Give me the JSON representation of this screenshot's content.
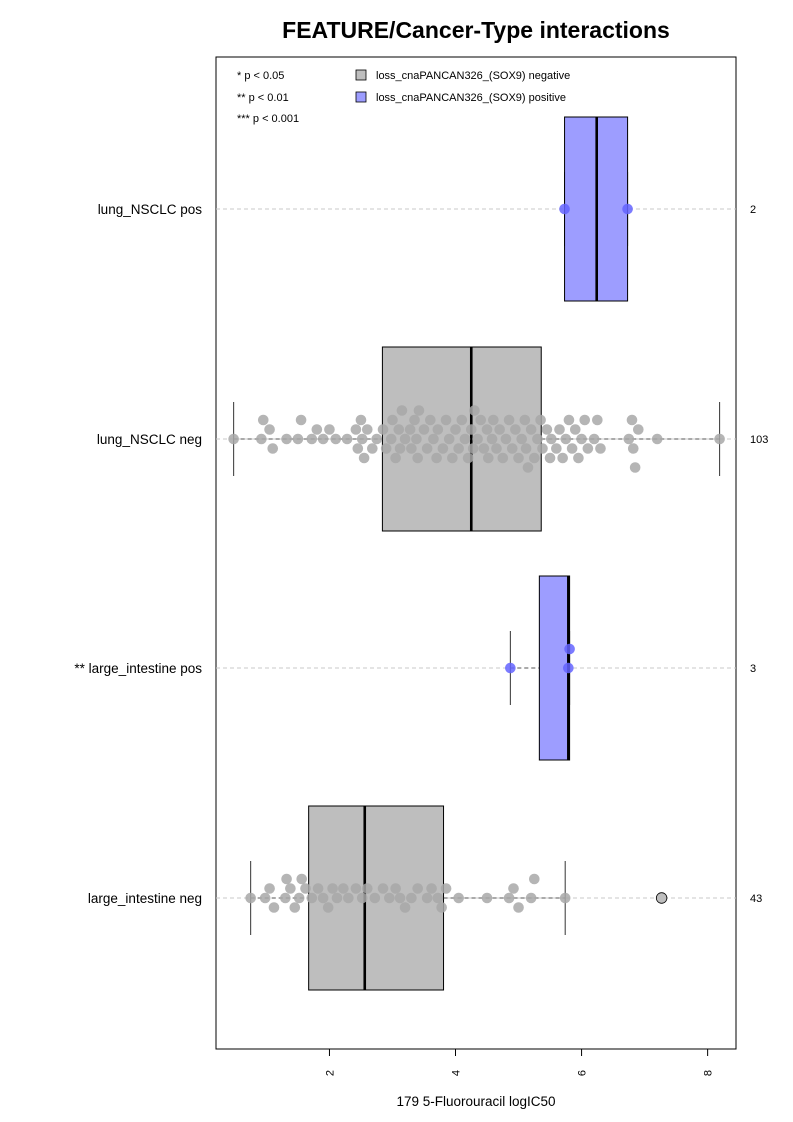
{
  "chart_data": {
    "type": "box",
    "orientation": "horizontal",
    "title": "FEATURE/Cancer-Type interactions",
    "xlabel": "179 5-Fluorouracil logIC50",
    "xlim": [
      0.2,
      8.45
    ],
    "x_ticks": [
      2,
      4,
      6,
      8
    ],
    "x_tick_labels": [
      "2",
      "4",
      "6",
      "8"
    ],
    "grid": "dashed horizontal line per group",
    "legend_position": "top-left inside plot",
    "significance_legend": [
      "* p < 0.05",
      "** p < 0.01",
      "*** p < 0.001"
    ],
    "series": [
      {
        "name": "loss_cnaPANCAN326_(SOX9) negative",
        "color": "#bebebe",
        "point_color": "#a8a8a8"
      },
      {
        "name": "loss_cnaPANCAN326_(SOX9) positive",
        "color": "#9d9dff",
        "point_color": "#6464ff"
      }
    ],
    "groups": [
      {
        "label": "lung_NSCLC pos",
        "n": "2",
        "series": 1,
        "whisker_low": 5.73,
        "q1": 5.73,
        "median": 6.24,
        "q3": 6.73,
        "whisker_high": 6.73,
        "points": [
          5.73,
          6.73
        ],
        "outliers": []
      },
      {
        "label": "lung_NSCLC neg",
        "n": "103",
        "series": 0,
        "whisker_low": 0.48,
        "q1": 2.84,
        "median": 4.25,
        "q3": 5.36,
        "whisker_high": 8.19,
        "points": [
          0.48,
          0.92,
          0.95,
          1.05,
          1.1,
          1.32,
          1.5,
          1.55,
          1.72,
          1.8,
          1.9,
          2.0,
          2.1,
          2.28,
          2.42,
          2.45,
          2.5,
          2.52,
          2.55,
          2.6,
          2.68,
          2.75,
          2.85,
          2.9,
          3.0,
          3.05,
          3.1,
          3.12,
          3.15,
          3.2,
          3.28,
          3.3,
          3.35,
          3.4,
          3.42,
          3.5,
          3.55,
          3.6,
          3.65,
          3.7,
          3.72,
          3.8,
          3.85,
          3.9,
          3.95,
          4.0,
          4.05,
          4.1,
          4.15,
          4.2,
          4.25,
          4.28,
          4.3,
          4.35,
          4.4,
          4.45,
          4.5,
          4.52,
          4.6,
          4.65,
          4.7,
          4.75,
          4.8,
          4.85,
          4.9,
          4.95,
          5.0,
          5.05,
          5.1,
          5.15,
          5.2,
          5.25,
          5.3,
          5.35,
          5.38,
          5.45,
          5.5,
          5.52,
          5.6,
          5.65,
          5.7,
          5.75,
          5.8,
          5.85,
          5.9,
          5.95,
          6.0,
          6.05,
          6.1,
          6.2,
          6.25,
          6.3,
          6.75,
          6.8,
          6.82,
          6.85,
          6.9,
          7.2,
          3.38,
          4.58,
          5.12,
          2.98,
          8.19
        ],
        "outliers": []
      },
      {
        "label": "** large_intestine pos",
        "n": "3",
        "series": 1,
        "whisker_low": 4.87,
        "q1": 5.33,
        "median": 5.79,
        "q3": 5.81,
        "whisker_high": 5.81,
        "points": [
          4.87,
          5.79,
          5.81
        ],
        "outliers": []
      },
      {
        "label": "large_intestine neg",
        "n": "43",
        "series": 0,
        "whisker_low": 0.75,
        "q1": 1.67,
        "median": 2.56,
        "q3": 3.81,
        "whisker_high": 5.74,
        "points": [
          0.75,
          0.98,
          1.05,
          1.12,
          1.32,
          1.38,
          1.45,
          1.52,
          1.56,
          1.62,
          1.72,
          1.82,
          1.9,
          1.98,
          2.05,
          2.12,
          2.22,
          2.3,
          2.42,
          2.52,
          2.6,
          2.72,
          2.85,
          2.95,
          3.05,
          3.12,
          3.2,
          3.3,
          3.4,
          3.55,
          3.62,
          3.72,
          3.78,
          3.85,
          4.05,
          4.5,
          4.85,
          4.92,
          5.0,
          5.2,
          5.25,
          5.74,
          1.3
        ],
        "outliers": [
          7.27
        ]
      }
    ]
  }
}
